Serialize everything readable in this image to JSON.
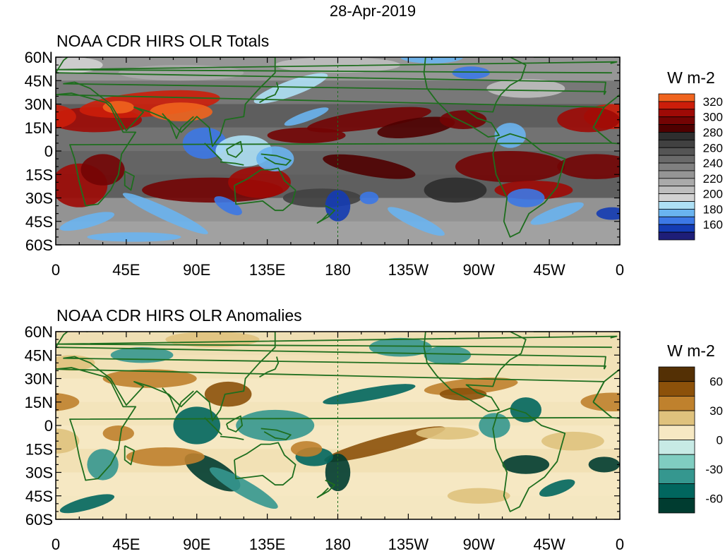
{
  "figure": {
    "date": "28-Apr-2019"
  },
  "axes": {
    "lat_labels": [
      "60N",
      "45N",
      "30N",
      "15N",
      "0",
      "15S",
      "30S",
      "45S",
      "60S"
    ],
    "lon_labels": [
      "0",
      "45E",
      "90E",
      "135E",
      "180",
      "135W",
      "90W",
      "45W",
      "0"
    ]
  },
  "panels": [
    {
      "id": "totals",
      "title": "NOAA CDR HIRS OLR Totals",
      "colorbar": {
        "units": "W m-2",
        "labels": [
          "320",
          "300",
          "280",
          "260",
          "240",
          "220",
          "200",
          "180",
          "160"
        ],
        "colors": [
          "#f0641e",
          "#cc1e0a",
          "#9e0a06",
          "#730404",
          "#4f0000",
          "#2e2e2e",
          "#414141",
          "#555555",
          "#6a6a6a",
          "#808080",
          "#959595",
          "#aaaaaa",
          "#bebebe",
          "#d2d2d2",
          "#aee0f5",
          "#6ab4f0",
          "#3c78e6",
          "#143cb4",
          "#1e1e78"
        ]
      }
    },
    {
      "id": "anomalies",
      "title": "NOAA CDR HIRS OLR Anomalies",
      "colorbar": {
        "units": "W m-2",
        "labels": [
          "60",
          "30",
          "0",
          "-30",
          "-60"
        ],
        "colors": [
          "#543005",
          "#8c510a",
          "#bf812d",
          "#dfc27d",
          "#f6e8c3",
          "#c7eae5",
          "#80cdc1",
          "#35978f",
          "#01665e",
          "#003c30"
        ]
      }
    }
  ],
  "style": {
    "coastline_color": "#1e6e1e",
    "grid_color": "#1e6e1e"
  }
}
